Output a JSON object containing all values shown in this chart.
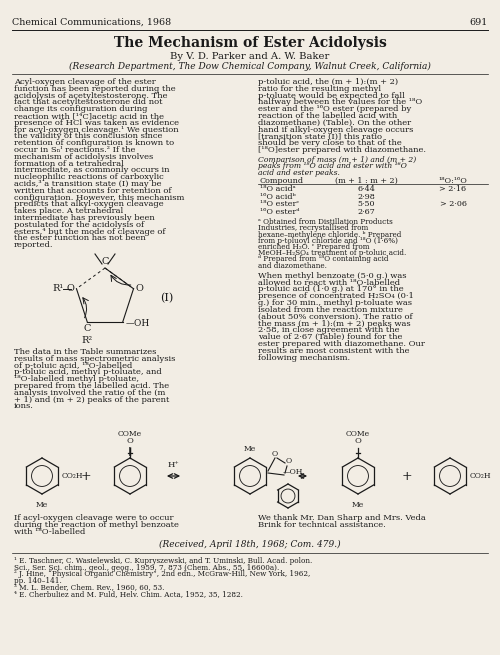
{
  "title": "The Mechanism of Ester Acidolysis",
  "journal_header": "Chemical Communications, 1968",
  "page_number": "691",
  "authors": "By V. D. Parker and A. W. Baker",
  "affiliation": "(Research Department, The Dow Chemical Company, Walnut Creek, California)",
  "background_color": "#f2ede4",
  "text_color": "#1a1a1a",
  "body_left": "Acyl-oxygen cleavage of the ester function has been reported during the acidolysis of acetyltestosterone.  The fact that acetyltestosterone did not change its configuration during reaction with [¹⁴C]acetic acid in the presence of HCl was taken as evidence for acyl-oxygen cleavage.¹  We question the validity of this conclusion since retention of configuration is known to occur in Sₙᴵ reactions.² If the mechanism of acidolysis involves formation of a tetrahedral intermediate, as commonly occurs in nucleophilic reactions of carboxylic acids,³ a transition state (I) may be written that accounts for retention of configuration.  However, this mechanism predicts that alkyl-oxygen cleavage takes place.  A tetrahedral intermediate has previously been postulated for the acidolysis of esters,⁴ but the mode of cleavage of the ester function has not been reported.",
  "body_right_top": "p-toluic acid, the (m + 1):(m + 2) ratio for the resulting methyl p-toluate would be expected to fall halfway between the values for the ¹⁸O ester and the ¹⁶O ester (prepared by reaction of the labelled acid with diazomethane) (Table).  On the other hand if alkyl-oxygen cleavage occurs [transition state (I)] this ratio should be very close to that of the [¹⁸O]ester prepared with diazomethane.",
  "table_title": "Comparison of mass (m + 1) and (m + 2) peaks from ¹⁸O acid and ester with ¹⁶O acid and ester peaks.",
  "table_headers": [
    "Compound",
    "(m + 1 : m + 2)",
    "¹⁸O : ¹⁶O"
  ],
  "table_rows": [
    [
      "¹⁸O acidᵃ",
      "6·44",
      "> 2·16"
    ],
    [
      "¹⁶O acidᵇ",
      "2·98",
      ""
    ],
    [
      "¹⁸O esterᶜ",
      "5·50",
      "> 2·06"
    ],
    [
      "¹⁶O esterᵈ",
      "2·67",
      ""
    ]
  ],
  "table_footnotes": "ᵃ Obtained from Distillation Products Industries, recrystallised from hexane–methylene chloride.  ᵇ Prepared from p-toluoyl chloride and ¹⁸O (1·6%) enriched H₂O.  ᶜ Prepared from MeOH–H₂SO₄ treatment of p-toluic acid.  ᵈ Prepared from ¹⁸O containing acid and diazomethane.",
  "body_right2": "When methyl benzoate (5·0 g.) was allowed to react with ¹⁸O-labelled p-toluic acid (1·0 g.) at 170° in the presence of concentrated H₂SO₄ (0·1 g.) for 30 min., methyl p-toluate was isolated from the reaction mixture (about 50% conversion).  The ratio of the mass (m + 1):(m + 2) peaks was 2·58, in close agreement with the value of 2·67 (Table) found for the ester prepared with diazomethane. Our results are most consistent with the following mechanism.",
  "data_text": "The data in the Table summarizes results of mass spectrometric analysis of p-toluic acid, ¹⁸O-labelled p-toluic acid, methyl p-toluate, and ¹⁸O-labelled methyl p-toluate, prepared from the labelled acid.  The analysis involved the ratio of the (m + 1) and (m + 2) peaks of the parent ions.",
  "caption_left": "If acyl-oxygen cleavage were to occur during the reaction of methyl benzoate with ¹⁸O-labelled",
  "caption_right": "We thank Mr. Dan Sharp and Mrs. Veda Brink for technical assistance.",
  "received": "(Received, April 18th, 1968; Com. 479.)",
  "footnotes": [
    "¹ E. Taschner, C. Wasielewski, C. Kupryszewski, and T. Uminski, Bull. Acad. polon. Sci., Ser. Sci. chim., geol., geog., 1959, 7, 873 (Chem. Abs., 55, 16600a).",
    "² J. Hine, “Physical Organic Chemistry”, 2nd edn., McGraw-Hill, New York, 1962, pp. 140–141.",
    "³ M. L. Bender, Chem. Rev., 1960, 60, 53.",
    "⁴ E. Cherbuliez and M. Fuld, Helv. Chim. Acta, 1952, 35, 1282."
  ]
}
